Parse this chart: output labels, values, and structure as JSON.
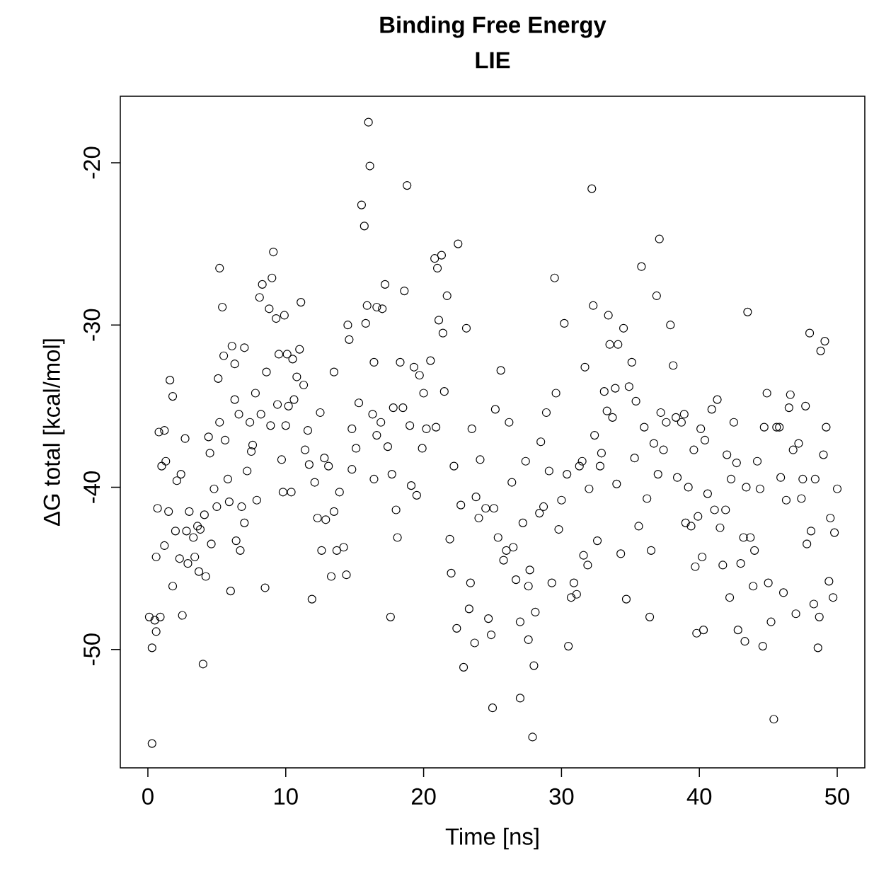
{
  "chart_data": {
    "type": "scatter",
    "title": "Binding Free Energy",
    "subtitle": "LIE",
    "xlabel": "Time [ns]",
    "ylabel": "ΔG total [kcal/mol]",
    "xlim": [
      -2,
      52
    ],
    "ylim": [
      -57.3,
      -15.9
    ],
    "xticks": [
      0,
      10,
      20,
      30,
      40,
      50
    ],
    "yticks": [
      -50,
      -40,
      -30,
      -20
    ],
    "marker": "circle",
    "color": "#000000",
    "x": [
      0.1,
      0.3,
      0.3,
      0.5,
      0.6,
      0.6,
      0.7,
      0.8,
      0.9,
      1.0,
      1.2,
      1.2,
      1.3,
      1.5,
      1.6,
      1.8,
      1.8,
      2.0,
      2.1,
      2.3,
      2.4,
      2.5,
      2.7,
      2.8,
      2.9,
      3.0,
      3.3,
      3.4,
      3.6,
      3.7,
      3.8,
      4.0,
      4.1,
      4.2,
      4.4,
      4.5,
      4.6,
      4.8,
      5.0,
      5.1,
      5.2,
      5.2,
      5.4,
      5.5,
      5.6,
      5.8,
      5.9,
      6.0,
      6.1,
      6.3,
      6.3,
      6.4,
      6.6,
      6.7,
      6.8,
      7.0,
      7.0,
      7.2,
      7.4,
      7.5,
      7.6,
      7.8,
      7.9,
      8.1,
      8.2,
      8.3,
      8.5,
      8.6,
      8.8,
      8.9,
      9.0,
      9.1,
      9.3,
      9.4,
      9.5,
      9.7,
      9.8,
      9.9,
      10.0,
      10.1,
      10.2,
      10.4,
      10.5,
      10.6,
      10.8,
      11.0,
      11.1,
      11.3,
      11.4,
      11.6,
      11.7,
      11.9,
      12.1,
      12.3,
      12.5,
      12.6,
      12.8,
      12.9,
      13.1,
      13.3,
      13.5,
      13.5,
      13.7,
      13.9,
      14.2,
      14.4,
      14.5,
      14.6,
      14.8,
      14.8,
      15.1,
      15.3,
      15.5,
      15.7,
      15.8,
      15.9,
      16.0,
      16.1,
      16.3,
      16.4,
      16.4,
      16.6,
      16.6,
      16.9,
      17.0,
      17.2,
      17.4,
      17.6,
      17.7,
      17.8,
      18.0,
      18.1,
      18.3,
      18.5,
      18.6,
      18.8,
      19.0,
      19.1,
      19.3,
      19.5,
      19.7,
      19.9,
      20.0,
      20.2,
      20.5,
      20.8,
      20.9,
      21.0,
      21.1,
      21.3,
      21.4,
      21.5,
      21.7,
      21.9,
      22.0,
      22.2,
      22.4,
      22.5,
      22.7,
      22.9,
      23.1,
      23.3,
      23.4,
      23.5,
      23.7,
      23.8,
      24.0,
      24.1,
      24.5,
      24.7,
      24.9,
      25.0,
      25.1,
      25.2,
      25.4,
      25.6,
      25.8,
      26.0,
      26.2,
      26.4,
      26.5,
      26.7,
      27.0,
      27.0,
      27.2,
      27.4,
      27.6,
      27.6,
      27.7,
      27.9,
      28.0,
      28.1,
      28.4,
      28.5,
      28.7,
      28.9,
      29.1,
      29.3,
      29.5,
      29.6,
      29.8,
      30.0,
      30.2,
      30.4,
      30.5,
      30.7,
      30.9,
      31.1,
      31.3,
      31.5,
      31.6,
      31.7,
      31.9,
      32.0,
      32.2,
      32.3,
      32.4,
      32.6,
      32.8,
      32.9,
      33.1,
      33.3,
      33.4,
      33.5,
      33.7,
      33.9,
      34.0,
      34.1,
      34.3,
      34.5,
      34.7,
      34.9,
      35.1,
      35.3,
      35.4,
      35.6,
      35.8,
      36.0,
      36.2,
      36.4,
      36.5,
      36.7,
      36.9,
      37.0,
      37.1,
      37.2,
      37.4,
      37.6,
      37.9,
      38.1,
      38.3,
      38.4,
      38.7,
      38.9,
      39.0,
      39.2,
      39.4,
      39.6,
      39.7,
      39.8,
      39.9,
      40.1,
      40.2,
      40.3,
      40.4,
      40.6,
      40.9,
      41.1,
      41.3,
      41.5,
      41.7,
      41.9,
      42.0,
      42.2,
      42.3,
      42.5,
      42.7,
      42.8,
      43.0,
      43.2,
      43.3,
      43.4,
      43.5,
      43.7,
      43.9,
      44.0,
      44.2,
      44.4,
      44.6,
      44.7,
      44.9,
      45.0,
      45.2,
      45.4,
      45.6,
      45.8,
      45.9,
      46.1,
      46.3,
      46.5,
      46.6,
      46.8,
      47.0,
      47.2,
      47.4,
      47.5,
      47.7,
      47.8,
      48.0,
      48.1,
      48.3,
      48.4,
      48.6,
      48.7,
      48.8,
      49.0,
      49.1,
      49.2,
      49.4,
      49.5,
      49.7,
      49.8,
      50.0
    ],
    "values": [
      -48.0,
      -55.8,
      -49.9,
      -48.2,
      -48.9,
      -44.3,
      -41.3,
      -36.6,
      -48.0,
      -38.7,
      -43.6,
      -36.5,
      -38.4,
      -41.5,
      -33.4,
      -34.4,
      -46.1,
      -42.7,
      -39.6,
      -44.4,
      -39.2,
      -47.9,
      -37.0,
      -42.7,
      -44.7,
      -41.5,
      -43.1,
      -44.3,
      -42.4,
      -45.2,
      -42.6,
      -50.9,
      -41.7,
      -45.5,
      -36.9,
      -37.9,
      -43.5,
      -40.1,
      -41.2,
      -33.3,
      -36.0,
      -26.5,
      -28.9,
      -31.9,
      -37.1,
      -39.5,
      -40.9,
      -46.4,
      -31.3,
      -34.6,
      -32.4,
      -43.3,
      -35.5,
      -43.9,
      -41.2,
      -31.4,
      -42.2,
      -39.0,
      -36.0,
      -37.8,
      -37.4,
      -34.2,
      -40.8,
      -28.3,
      -35.5,
      -27.5,
      -46.2,
      -32.9,
      -29.0,
      -36.2,
      -27.1,
      -25.5,
      -29.6,
      -34.9,
      -31.8,
      -38.3,
      -40.3,
      -29.4,
      -36.2,
      -31.8,
      -35.0,
      -40.3,
      -32.1,
      -34.6,
      -33.2,
      -31.5,
      -28.6,
      -33.7,
      -37.7,
      -36.5,
      -38.6,
      -46.9,
      -39.7,
      -41.9,
      -35.4,
      -43.9,
      -38.2,
      -42.0,
      -38.7,
      -45.5,
      -32.9,
      -41.5,
      -43.9,
      -40.3,
      -43.7,
      -45.4,
      -30.0,
      -30.9,
      -36.4,
      -38.9,
      -37.6,
      -34.8,
      -22.6,
      -23.9,
      -29.9,
      -28.8,
      -17.5,
      -20.2,
      -35.5,
      -32.3,
      -39.5,
      -28.9,
      -36.8,
      -36.0,
      -29.0,
      -27.5,
      -37.5,
      -48.0,
      -39.2,
      -35.1,
      -41.4,
      -43.1,
      -32.3,
      -35.1,
      -27.9,
      -21.4,
      -36.2,
      -39.9,
      -32.6,
      -40.5,
      -33.1,
      -37.6,
      -34.2,
      -36.4,
      -32.2,
      -25.9,
      -36.3,
      -26.5,
      -29.7,
      -25.7,
      -30.5,
      -34.1,
      -28.2,
      -43.2,
      -45.3,
      -38.7,
      -48.7,
      -25.0,
      -41.1,
      -51.1,
      -30.2,
      -47.5,
      -45.9,
      -36.4,
      -49.6,
      -40.6,
      -41.9,
      -38.3,
      -41.3,
      -48.1,
      -49.1,
      -53.6,
      -41.3,
      -35.2,
      -43.1,
      -32.8,
      -44.5,
      -43.9,
      -36.0,
      -39.7,
      -43.7,
      -45.7,
      -53.0,
      -48.3,
      -42.2,
      -38.4,
      -46.1,
      -49.4,
      -45.1,
      -55.4,
      -51.0,
      -47.7,
      -41.6,
      -37.2,
      -41.2,
      -35.4,
      -39.0,
      -45.9,
      -27.1,
      -34.2,
      -42.6,
      -40.8,
      -29.9,
      -39.2,
      -49.8,
      -46.8,
      -45.9,
      -46.6,
      -38.7,
      -38.4,
      -44.2,
      -32.6,
      -44.8,
      -40.1,
      -21.6,
      -28.8,
      -36.8,
      -43.3,
      -38.7,
      -37.9,
      -34.1,
      -35.3,
      -29.4,
      -31.2,
      -35.7,
      -33.9,
      -39.8,
      -31.2,
      -44.1,
      -30.2,
      -46.9,
      -33.8,
      -32.3,
      -38.2,
      -34.7,
      -42.4,
      -26.4,
      -36.3,
      -40.7,
      -48.0,
      -43.9,
      -37.3,
      -28.2,
      -39.2,
      -24.7,
      -35.4,
      -37.7,
      -36.0,
      -30.0,
      -32.5,
      -35.7,
      -39.4,
      -36.0,
      -35.5,
      -42.2,
      -40.0,
      -42.4,
      -37.7,
      -44.9,
      -49.0,
      -41.8,
      -36.4,
      -44.3,
      -48.8,
      -37.1,
      -40.4,
      -35.2,
      -41.4,
      -34.6,
      -42.5,
      -44.8,
      -41.4,
      -38.0,
      -46.8,
      -39.5,
      -36.0,
      -38.5,
      -48.8,
      -44.7,
      -43.1,
      -49.5,
      -40.0,
      -29.2,
      -43.1,
      -46.1,
      -43.9,
      -38.4,
      -40.1,
      -49.8,
      -36.3,
      -34.2,
      -45.9,
      -48.3,
      -54.3,
      -36.3,
      -36.3,
      -39.4,
      -46.5,
      -40.8,
      -35.1,
      -34.3,
      -37.7,
      -47.8,
      -37.3,
      -40.7,
      -39.5,
      -35.0,
      -43.5,
      -30.5,
      -42.7,
      -47.2,
      -39.5,
      -49.9,
      -48.0,
      -31.6,
      -38.0,
      -31.0,
      -36.3,
      -45.8,
      -41.9,
      -46.8,
      -42.8,
      -40.1
    ]
  }
}
